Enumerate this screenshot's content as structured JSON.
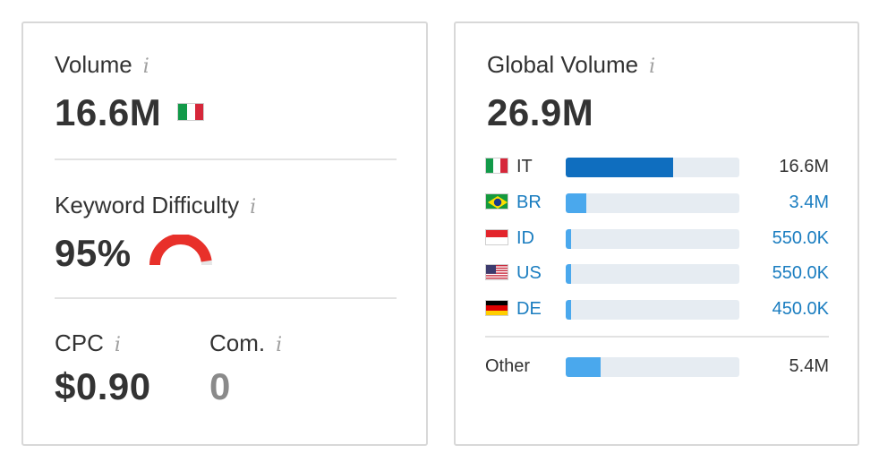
{
  "volume": {
    "label": "Volume",
    "info": "i",
    "value": "16.6M",
    "flag": "italy-flag"
  },
  "keyword_difficulty": {
    "label": "Keyword Difficulty",
    "info": "i",
    "value": "95%",
    "level_percent": 95,
    "color": "#e8302a"
  },
  "cpc": {
    "label": "CPC",
    "info": "i",
    "value": "$0.90"
  },
  "competition": {
    "label": "Com.",
    "info": "i",
    "value": "0"
  },
  "global_volume": {
    "label": "Global Volume",
    "info": "i",
    "value": "26.9M",
    "rows": [
      {
        "code": "IT",
        "value": "16.6M",
        "share": 0.62,
        "flag": "italy-flag",
        "color": "#0f6ebf",
        "link": false
      },
      {
        "code": "BR",
        "value": "3.4M",
        "share": 0.12,
        "flag": "brazil-flag",
        "color": "#4aa8ed",
        "link": true
      },
      {
        "code": "ID",
        "value": "550.0K",
        "share": 0.02,
        "flag": "indonesia-flag",
        "color": "#4aa8ed",
        "link": true
      },
      {
        "code": "US",
        "value": "550.0K",
        "share": 0.02,
        "flag": "usa-flag",
        "color": "#4aa8ed",
        "link": true
      },
      {
        "code": "DE",
        "value": "450.0K",
        "share": 0.02,
        "flag": "germany-flag",
        "color": "#4aa8ed",
        "link": true
      }
    ],
    "other": {
      "label": "Other",
      "value": "5.4M",
      "share": 0.2,
      "color": "#4aa8ed"
    }
  }
}
